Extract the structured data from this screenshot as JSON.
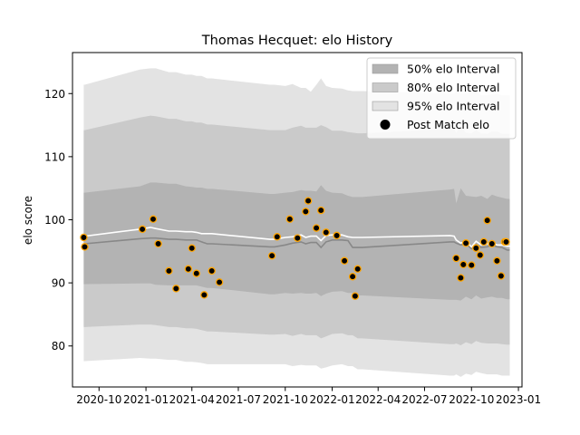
{
  "chart_data": {
    "type": "line",
    "title": "Thomas Hecquet: elo History",
    "xlabel": "",
    "ylabel": "elo score",
    "x_ticks": [
      "2020-10",
      "2021-01",
      "2021-04",
      "2021-07",
      "2021-10",
      "2022-01",
      "2022-04",
      "2022-07",
      "2022-10",
      "2023-01"
    ],
    "y_ticks": [
      80,
      90,
      100,
      110,
      120
    ],
    "xlim": [
      "2020-08-10",
      "2023-01-08"
    ],
    "ylim": [
      73.5,
      126.5
    ],
    "legend_position": "top-right",
    "legend": [
      {
        "label": "50% elo Interval",
        "color": "#b3b3b3"
      },
      {
        "label": "80% elo Interval",
        "color": "#cacaca"
      },
      {
        "label": "95% elo Interval",
        "color": "#e3e3e3"
      },
      {
        "label": "Post Match elo",
        "color": "#000000"
      }
    ],
    "dates": [
      "2020-09-01",
      "2020-09-03",
      "2020-12-20",
      "2021-01-10",
      "2021-01-20",
      "2021-02-15",
      "2021-03-01",
      "2021-03-20",
      "2021-04-01",
      "2021-04-10",
      "2021-04-20",
      "2021-05-01",
      "2021-05-10",
      "2021-09-01",
      "2021-09-10",
      "2021-10-01",
      "2021-10-15",
      "2021-11-01",
      "2021-11-10",
      "2021-11-20",
      "2021-12-01",
      "2021-12-10",
      "2021-12-20",
      "2022-01-01",
      "2022-01-20",
      "2022-02-01",
      "2022-02-10",
      "2022-02-20",
      "2022-03-01",
      "2022-08-20",
      "2022-08-28",
      "2022-09-01",
      "2022-09-10",
      "2022-09-20",
      "2022-10-01",
      "2022-10-10",
      "2022-10-20",
      "2022-11-01",
      "2022-11-10",
      "2022-11-20",
      "2022-11-30",
      "2022-12-10",
      "2022-12-15"
    ],
    "bands": {
      "p50_low": [
        89.8,
        89.8,
        89.9,
        89.9,
        89.7,
        89.6,
        89.6,
        89.6,
        89.6,
        89.6,
        89.4,
        89.2,
        89.2,
        88.2,
        88.2,
        88.4,
        88.3,
        88.4,
        88.3,
        88.3,
        88.4,
        87.9,
        88.3,
        88.6,
        88.7,
        88.4,
        88.4,
        88.0,
        88.0,
        87.3,
        87.3,
        87.3,
        87.2,
        87.8,
        87.4,
        88.0,
        87.5,
        87.7,
        87.8,
        87.6,
        87.6,
        87.4,
        87.4
      ],
      "p50_high": [
        104.3,
        104.3,
        105.3,
        105.9,
        105.9,
        105.7,
        105.7,
        105.3,
        105.2,
        105.1,
        105.1,
        104.9,
        104.9,
        104.1,
        104.1,
        104.3,
        104.4,
        104.7,
        104.6,
        104.6,
        104.5,
        105.5,
        104.6,
        104.3,
        104.2,
        103.8,
        103.6,
        103.6,
        103.6,
        104.8,
        104.9,
        102.6,
        105.0,
        103.8,
        103.7,
        103.6,
        103.8,
        103.3,
        104.0,
        103.7,
        103.5,
        103.3,
        103.3
      ],
      "p80_low": [
        83.0,
        83.0,
        83.4,
        83.4,
        83.3,
        83.0,
        83.0,
        82.8,
        82.8,
        82.7,
        82.5,
        82.3,
        82.3,
        81.8,
        81.8,
        81.9,
        81.6,
        81.9,
        81.7,
        81.7,
        81.7,
        81.2,
        81.5,
        81.9,
        82.0,
        81.7,
        81.7,
        81.2,
        81.2,
        80.3,
        80.3,
        80.4,
        80.1,
        80.6,
        80.3,
        80.8,
        80.5,
        80.4,
        80.4,
        80.4,
        80.3,
        80.2,
        80.2
      ],
      "p80_high": [
        114.2,
        114.2,
        116.2,
        116.5,
        116.4,
        116.0,
        116.0,
        115.6,
        115.6,
        115.4,
        115.4,
        115.1,
        115.1,
        114.2,
        114.2,
        114.2,
        114.6,
        114.9,
        114.6,
        114.6,
        114.6,
        115.0,
        114.7,
        114.1,
        114.1,
        113.9,
        113.8,
        113.7,
        113.7,
        114.4,
        114.4,
        113.8,
        114.8,
        113.8,
        113.7,
        114.2,
        113.7,
        113.6,
        114.0,
        114.0,
        113.6,
        113.6,
        113.6
      ],
      "p95_low": [
        77.6,
        77.6,
        78.1,
        78.0,
        78.0,
        77.8,
        77.8,
        77.5,
        77.5,
        77.4,
        77.3,
        77.1,
        77.1,
        77.1,
        77.1,
        77.1,
        76.8,
        77.0,
        76.9,
        76.9,
        76.9,
        76.4,
        76.6,
        76.9,
        77.1,
        76.8,
        76.8,
        76.3,
        76.3,
        75.3,
        75.3,
        75.5,
        75.1,
        75.6,
        75.4,
        75.9,
        75.7,
        75.5,
        75.5,
        75.5,
        75.3,
        75.3,
        75.3
      ],
      "p95_high": [
        121.4,
        121.4,
        123.8,
        124.0,
        124.0,
        123.4,
        123.4,
        123.0,
        123.0,
        122.8,
        122.8,
        122.4,
        122.4,
        121.4,
        121.4,
        121.2,
        121.5,
        120.9,
        120.9,
        120.3,
        121.4,
        122.4,
        121.2,
        120.9,
        120.8,
        120.5,
        120.4,
        120.4,
        120.4,
        120.0,
        120.0,
        120.4,
        120.0,
        120.0,
        120.4,
        120.4,
        119.7,
        119.7,
        119.9,
        120.0,
        119.7,
        119.7,
        119.7
      ]
    },
    "series": [
      {
        "name": "",
        "color": "#888888",
        "values": [
          96.1,
          96.2,
          97.0,
          97.1,
          97.1,
          96.9,
          96.9,
          96.8,
          96.8,
          96.8,
          96.5,
          96.2,
          96.2,
          95.7,
          95.7,
          96.0,
          96.3,
          96.5,
          96.2,
          96.4,
          96.4,
          95.6,
          96.5,
          96.8,
          96.8,
          96.7,
          95.6,
          95.6,
          95.6,
          96.5,
          96.5,
          96.3,
          96.0,
          96.2,
          95.4,
          96.1,
          95.6,
          95.7,
          96.0,
          95.7,
          95.6,
          95.2,
          95.2
        ]
      },
      {
        "name": "",
        "color": "#ffffff",
        "values": [
          97.3,
          97.4,
          98.5,
          98.8,
          98.6,
          98.2,
          98.2,
          98.1,
          98.1,
          98.0,
          97.8,
          97.8,
          97.8,
          96.9,
          96.9,
          97.2,
          97.3,
          97.6,
          97.2,
          97.4,
          97.4,
          96.7,
          97.5,
          97.6,
          97.6,
          97.3,
          97.2,
          97.2,
          97.2,
          97.5,
          97.4,
          96.8,
          96.3,
          96.6,
          95.7,
          96.6,
          96.0,
          96.2,
          96.4,
          96.0,
          96.0,
          95.8,
          95.8
        ]
      }
    ],
    "points": {
      "name": "Post Match elo",
      "x": [
        "2020-09-01",
        "2020-09-03",
        "2020-12-25",
        "2021-01-15",
        "2021-01-25",
        "2021-02-15",
        "2021-03-01",
        "2021-03-25",
        "2021-04-01",
        "2021-04-10",
        "2021-04-25",
        "2021-05-10",
        "2021-05-25",
        "2021-09-05",
        "2021-09-15",
        "2021-10-10",
        "2021-10-25",
        "2021-11-10",
        "2021-11-15",
        "2021-12-01",
        "2021-12-10",
        "2021-12-20",
        "2022-01-10",
        "2022-01-25",
        "2022-02-10",
        "2022-02-15",
        "2022-02-20",
        "2022-09-01",
        "2022-09-10",
        "2022-09-15",
        "2022-09-20",
        "2022-10-01",
        "2022-10-10",
        "2022-10-18",
        "2022-10-25",
        "2022-11-01",
        "2022-11-10",
        "2022-11-20",
        "2022-11-28",
        "2022-12-05",
        "2022-12-08"
      ],
      "y": [
        97.2,
        95.7,
        98.5,
        100.1,
        96.2,
        91.9,
        89.1,
        92.2,
        95.5,
        91.5,
        88.1,
        91.9,
        90.1,
        94.3,
        97.3,
        100.1,
        97.1,
        101.3,
        103.0,
        98.7,
        101.5,
        98.0,
        97.5,
        93.5,
        91.0,
        87.9,
        92.2,
        93.9,
        90.8,
        92.9,
        96.3,
        92.8,
        95.5,
        94.4,
        96.5,
        99.9,
        96.2,
        93.5,
        91.1,
        96.5,
        96.5
      ],
      "fill": "#000000",
      "edge": "#ffa500"
    }
  }
}
